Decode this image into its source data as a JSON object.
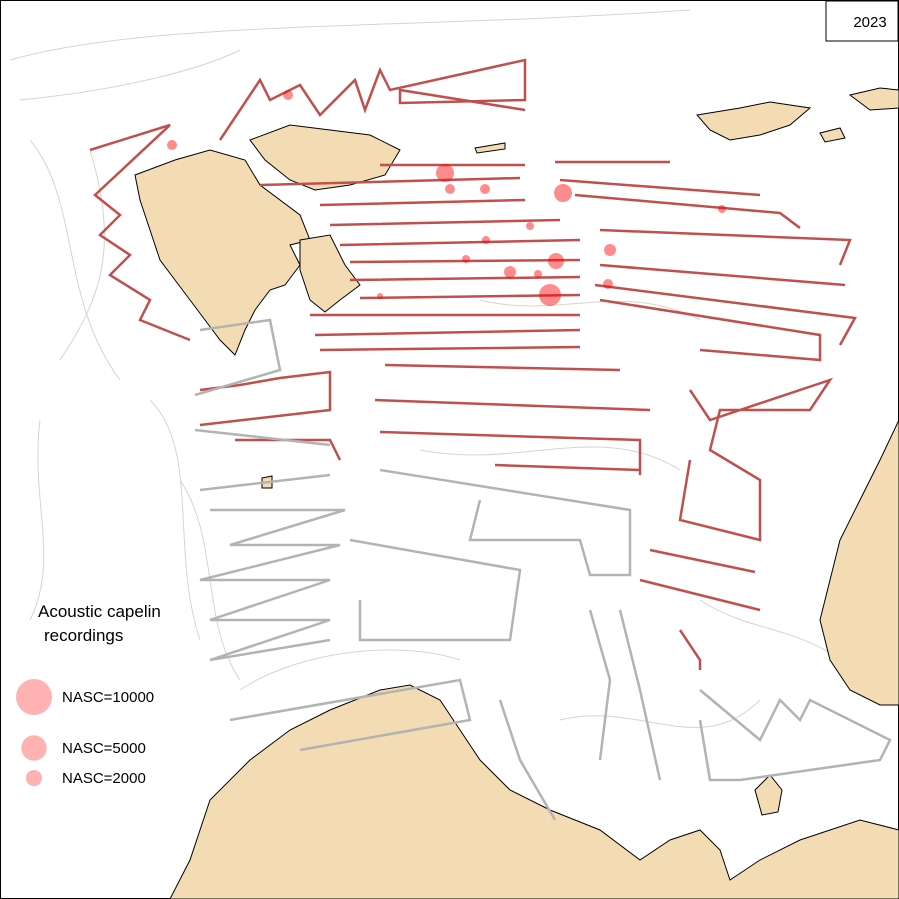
{
  "year": "2023",
  "legend": {
    "title_line1": "Acoustic capelin",
    "title_line2": "recordings",
    "items": [
      {
        "label": "NASC=10000",
        "value": 10000
      },
      {
        "label": "NASC=5000",
        "value": 5000
      },
      {
        "label": "NASC=2000",
        "value": 2000
      }
    ]
  }
}
